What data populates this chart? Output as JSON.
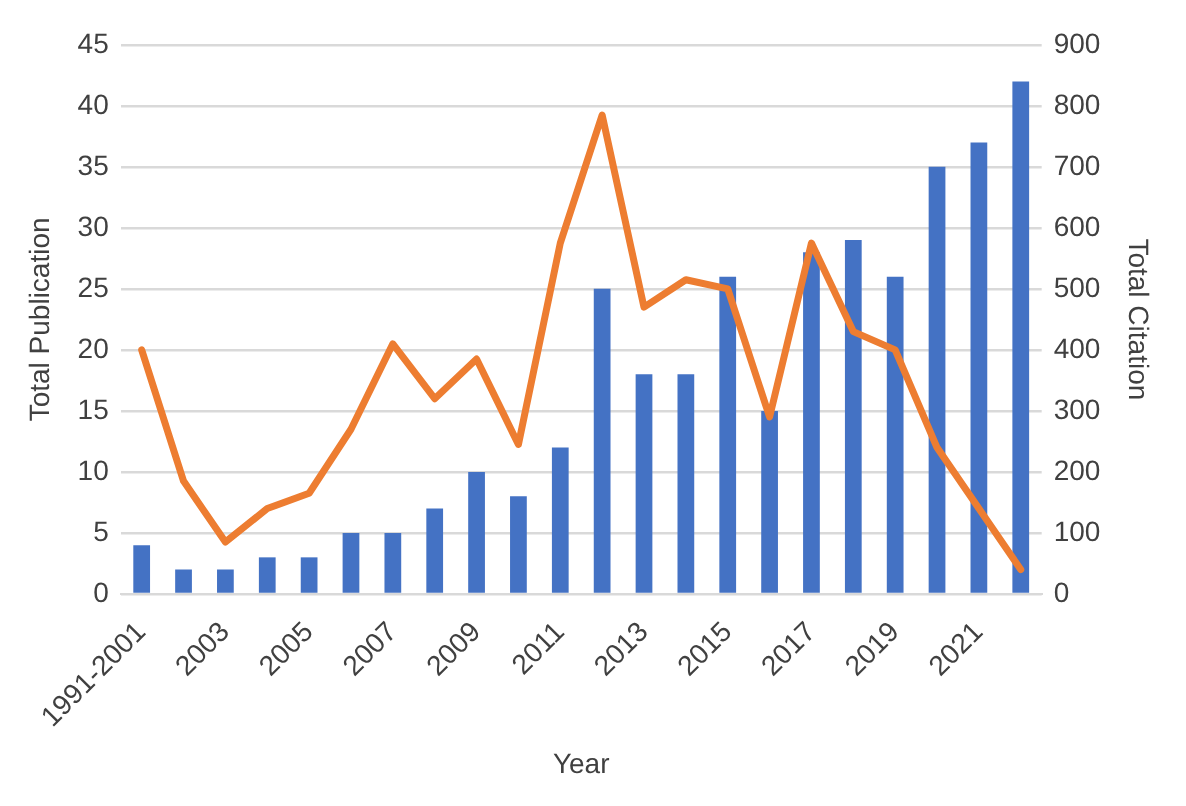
{
  "chart_data": {
    "type": "bar",
    "xlabel": "Year",
    "ylabel": "Total Publication",
    "y2label": "Total Citation",
    "categories": [
      "1991-2001",
      null,
      "2003",
      null,
      "2005",
      null,
      "2007",
      null,
      "2009",
      null,
      "2011",
      null,
      "2013",
      null,
      "2015",
      null,
      "2017",
      null,
      "2019",
      null,
      "2021",
      null
    ],
    "series": [
      {
        "color": "#4472c4",
        "values": [
          4,
          2,
          2,
          3,
          3,
          5,
          5,
          7,
          10,
          8,
          12,
          25,
          18,
          18,
          26,
          15,
          28,
          29,
          26,
          35,
          37,
          42
        ]
      },
      {
        "type": "line",
        "axis": "y2",
        "color": "#ed7d31",
        "values": [
          400,
          185,
          85,
          140,
          165,
          270,
          410,
          320,
          385,
          245,
          575,
          785,
          470,
          515,
          500,
          290,
          575,
          430,
          400,
          240,
          140,
          40
        ]
      }
    ],
    "ylim": [
      0,
      45
    ],
    "yticks": [
      0,
      5,
      10,
      15,
      20,
      25,
      30,
      35,
      40,
      45
    ],
    "y2lim": [
      0,
      900
    ],
    "y2ticks": [
      0,
      100,
      200,
      300,
      400,
      500,
      600,
      700,
      800,
      900
    ],
    "grid": "y",
    "legend": false,
    "marker": "none"
  }
}
